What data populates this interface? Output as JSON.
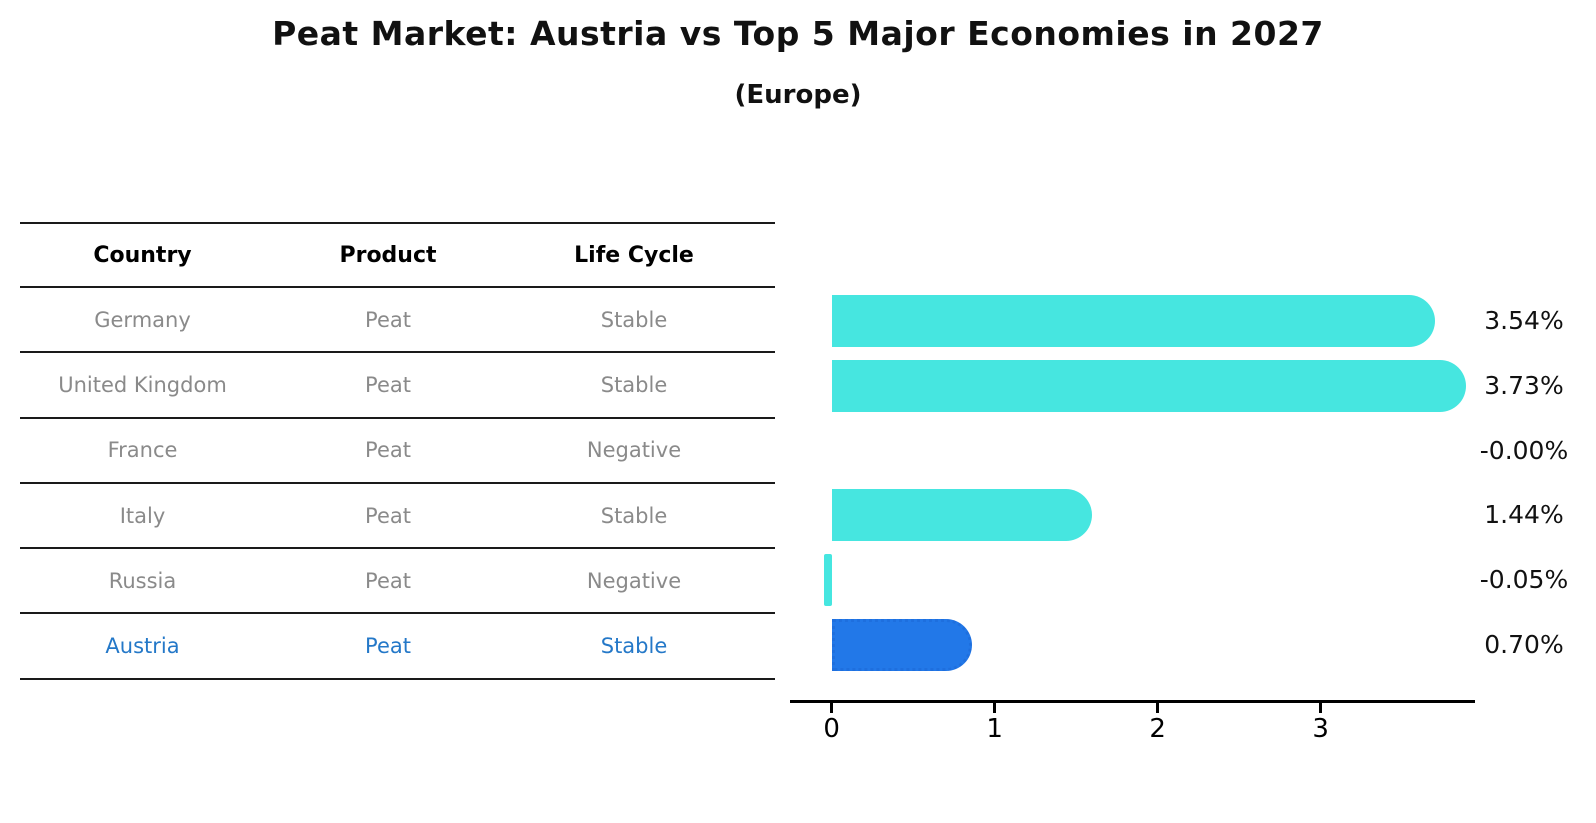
{
  "title": "Peat Market: Austria vs Top 5 Major Economies in 2027",
  "subtitle": "(Europe)",
  "table": {
    "headers": [
      "Country",
      "Product",
      "Life Cycle"
    ],
    "rows": [
      {
        "country": "Germany",
        "product": "Peat",
        "life_cycle": "Stable",
        "highlight": false
      },
      {
        "country": "United Kingdom",
        "product": "Peat",
        "life_cycle": "Stable",
        "highlight": false
      },
      {
        "country": "France",
        "product": "Peat",
        "life_cycle": "Negative",
        "highlight": false
      },
      {
        "country": "Italy",
        "product": "Peat",
        "life_cycle": "Stable",
        "highlight": false
      },
      {
        "country": "Russia",
        "product": "Peat",
        "life_cycle": "Negative",
        "highlight": false
      },
      {
        "country": "Austria",
        "product": "Peat",
        "life_cycle": "Stable",
        "highlight": true
      }
    ]
  },
  "chart_data": {
    "type": "bar",
    "orientation": "horizontal",
    "categories": [
      "Germany",
      "United Kingdom",
      "France",
      "Italy",
      "Russia",
      "Austria"
    ],
    "values": [
      3.54,
      3.73,
      -0.0,
      1.44,
      -0.05,
      0.7
    ],
    "value_labels": [
      "3.54%",
      "3.73%",
      "-0.00%",
      "1.44%",
      "-0.05%",
      "0.70%"
    ],
    "x_ticks": [
      0,
      1,
      2,
      3
    ],
    "xlim": [
      -0.25,
      3.94
    ],
    "grid": false,
    "legend": "none",
    "highlight_index": 5,
    "title": "Peat Market: Austria vs Top 5 Major Economies in 2027",
    "subtitle": "(Europe)",
    "xlabel": "",
    "ylabel": ""
  },
  "colors": {
    "bar": "#46e6e0",
    "highlight_bar": "#2278e8",
    "highlight_border": "#1e6fde",
    "highlight_text": "#2478c8",
    "table_text": "#8a8a8a",
    "line": "#1a1a1a"
  }
}
